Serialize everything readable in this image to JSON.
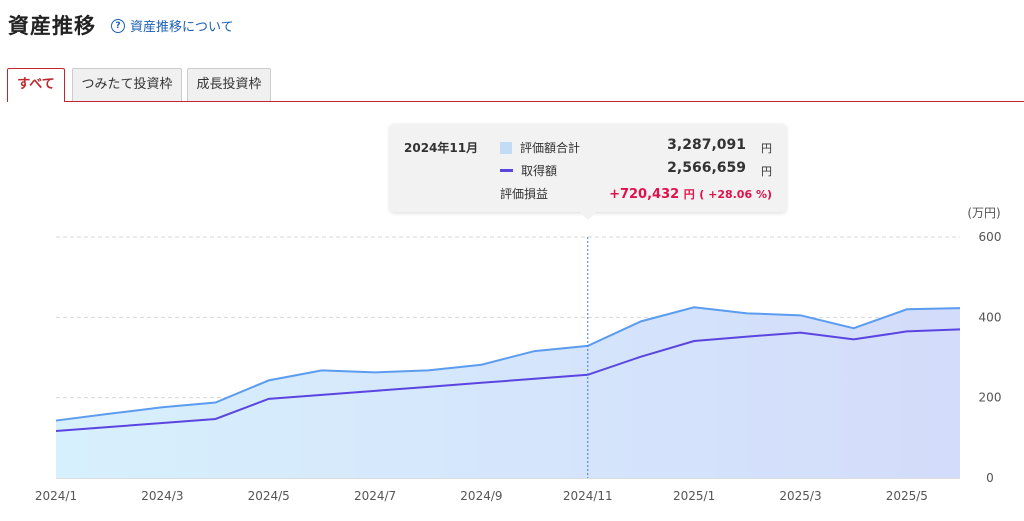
{
  "header": {
    "title": "資産推移",
    "help_link": "資産推移について",
    "help_icon": "question-circle-icon"
  },
  "tabs": [
    {
      "label": "すべて",
      "active": true
    },
    {
      "label": "つみたて投資枠",
      "active": false
    },
    {
      "label": "成長投資枠",
      "active": false
    }
  ],
  "tooltip": {
    "date": "2024年11月",
    "rows": [
      {
        "label": "評価額合計",
        "value": "3,287,091",
        "unit": "円"
      },
      {
        "label": "取得額",
        "value": "2,566,659",
        "unit": "円"
      }
    ],
    "gain_label": "評価損益",
    "gain_value": "+720,432",
    "gain_unit": "円",
    "gain_pct": "( +28.06 %)"
  },
  "colors": {
    "accent": "#c0262d",
    "area_line": "#5b9cf0",
    "area_fill": "#d5ebfc",
    "acq_line": "#5b45e0",
    "gain": "#e0114a"
  },
  "chart_data": {
    "type": "area",
    "unit_label": "(万円)",
    "x": [
      "2024/1",
      "2024/2",
      "2024/3",
      "2024/4",
      "2024/5",
      "2024/6",
      "2024/7",
      "2024/8",
      "2024/9",
      "2024/10",
      "2024/11",
      "2024/12",
      "2025/1",
      "2025/2",
      "2025/3",
      "2025/4",
      "2025/5",
      "2025/6"
    ],
    "x_tick_labels": [
      "2024/1",
      "2024/3",
      "2024/5",
      "2024/7",
      "2024/9",
      "2024/11",
      "2025/1",
      "2025/3",
      "2025/5"
    ],
    "y_ticks": [
      "0",
      "200",
      "400",
      "600"
    ],
    "ylim": [
      0,
      600
    ],
    "series": [
      {
        "name": "評価額合計",
        "values": [
          143,
          160,
          176,
          188,
          243,
          268,
          263,
          268,
          282,
          316,
          329,
          390,
          425,
          410,
          405,
          373,
          420,
          423
        ]
      },
      {
        "name": "取得額",
        "values": [
          117,
          127,
          137,
          147,
          197,
          207,
          217,
          227,
          237,
          247,
          257,
          302,
          341,
          352,
          362,
          345,
          365,
          370
        ]
      }
    ],
    "highlight_x": "2024/11",
    "grid": true
  }
}
